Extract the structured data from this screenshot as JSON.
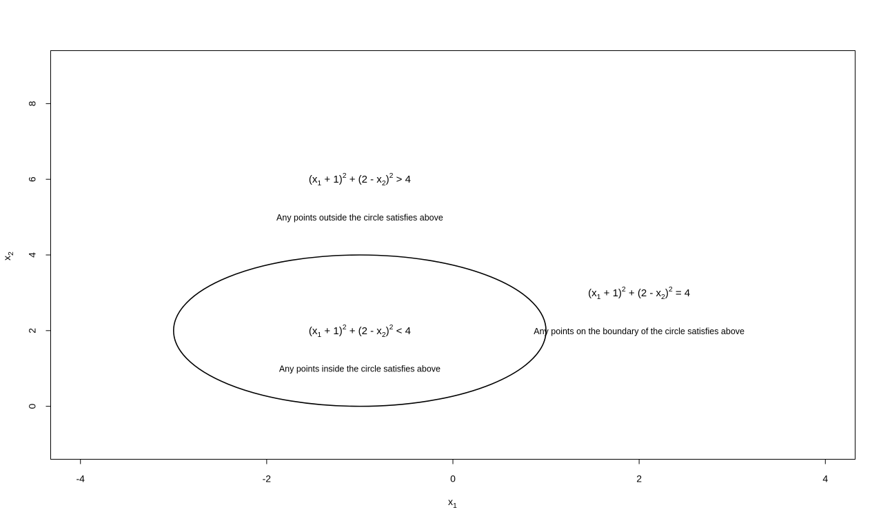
{
  "chart_data": {
    "type": "scatter",
    "title": "",
    "xlabel": "x",
    "xlabel_sub": "1",
    "ylabel": "x",
    "ylabel_sub": "2",
    "xlim": [
      -4.32,
      4.32
    ],
    "ylim": [
      -1.4,
      9.4
    ],
    "x_ticks": [
      -4,
      -2,
      0,
      2,
      4
    ],
    "y_ticks": [
      0,
      2,
      4,
      6,
      8
    ],
    "x_tick_labels": [
      "-4",
      "-2",
      "0",
      "2",
      "4"
    ],
    "y_tick_labels": [
      "0",
      "2",
      "4",
      "6",
      "8"
    ],
    "grid": false,
    "circle": {
      "center": [
        -1,
        2
      ],
      "radius": 2
    },
    "annotations": [
      {
        "id": "outside",
        "equation": {
          "x": -1,
          "y": 6,
          "relation": ">",
          "rhs": "4"
        },
        "note": {
          "x": -1,
          "y": 5,
          "text": "Any points outside the circle satisfies above"
        }
      },
      {
        "id": "inside",
        "equation": {
          "x": -1,
          "y": 2,
          "relation": "<",
          "rhs": "4"
        },
        "note": {
          "x": -1,
          "y": 1,
          "text": "Any points inside the circle satisfies above"
        }
      },
      {
        "id": "boundary",
        "equation": {
          "x": 2,
          "y": 3,
          "relation": "=",
          "rhs": "4"
        },
        "note": {
          "x": 2,
          "y": 2,
          "text": "Any points on the boundary of the circle satisfies above"
        }
      }
    ]
  }
}
